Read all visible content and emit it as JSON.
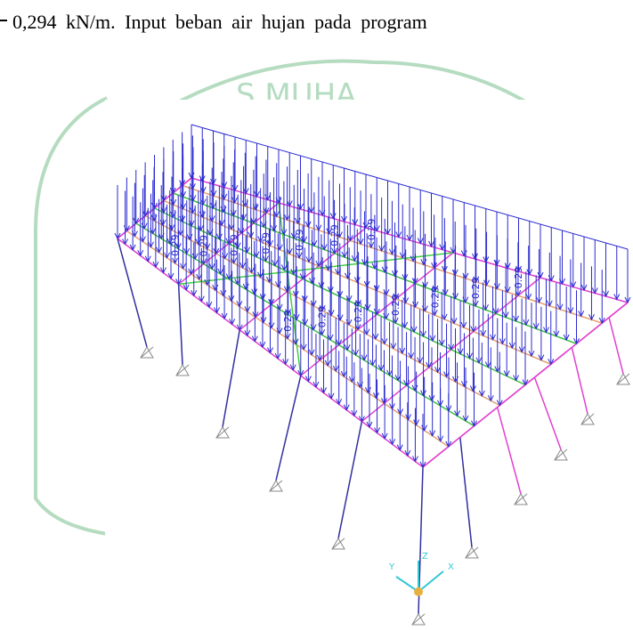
{
  "text": {
    "line": "0,294 kN/m. Input beban air hujan pada program"
  },
  "figure": {
    "watermark": "S MUHA",
    "load_labels": [
      "0.29",
      "0.29",
      "0.29",
      "0.29",
      "0.29",
      "0.29",
      "0.29",
      "0.29",
      "0.29",
      "0.29",
      "0.29",
      "0.29",
      "0.29",
      "0.29"
    ],
    "axis_labels": [
      "Y",
      "Z",
      "X"
    ]
  }
}
